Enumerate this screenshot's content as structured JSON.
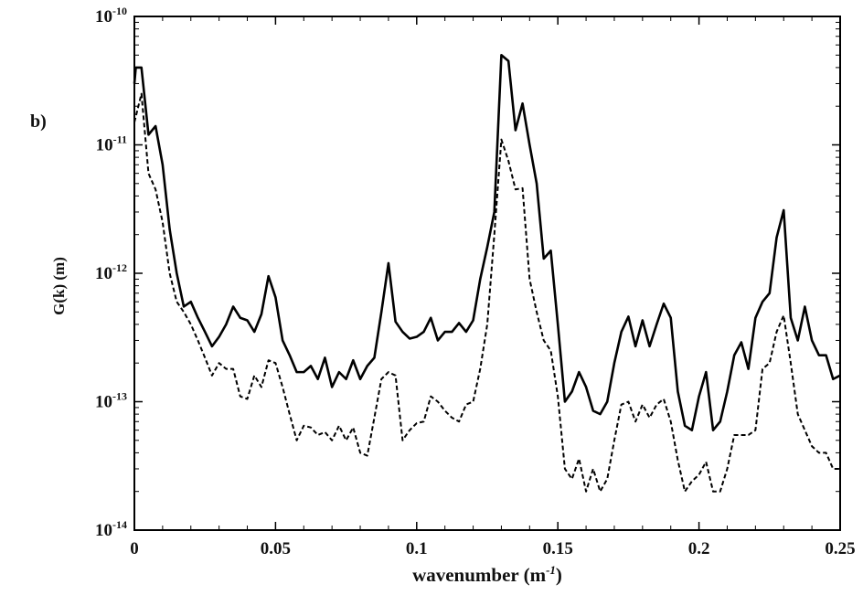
{
  "panel_label": "b)",
  "chart_data": {
    "type": "line",
    "xlabel": "wavenumber",
    "xlabel_unit_base": "m",
    "xlabel_unit_exp": "-1",
    "ylabel": "G(k) (m)",
    "xlim": [
      0,
      0.25
    ],
    "ylim": [
      1e-14,
      1e-10
    ],
    "yscale": "log",
    "grid": false,
    "legend": "none",
    "x_ticks": [
      0,
      0.05,
      0.1,
      0.15,
      0.2,
      0.25
    ],
    "x_tick_labels": [
      "0",
      "0.05",
      "0.1",
      "0.15",
      "0.2",
      "0.25"
    ],
    "y_ticks": [
      1e-14,
      1e-13,
      1e-12,
      1e-11,
      1e-10
    ],
    "y_tick_base": "10",
    "y_tick_exps": [
      "-14",
      "-13",
      "-12",
      "-11",
      "-10"
    ],
    "series": [
      {
        "style": "solid",
        "color": "#000000",
        "points": [
          [
            0.0,
            3e-11
          ],
          [
            0.0005,
            4e-11
          ],
          [
            0.0025,
            4e-11
          ],
          [
            0.005,
            1.2e-11
          ],
          [
            0.0075,
            1.4e-11
          ],
          [
            0.01,
            7e-12
          ],
          [
            0.0125,
            2.2e-12
          ],
          [
            0.015,
            1e-12
          ],
          [
            0.0175,
            5.5e-13
          ],
          [
            0.02,
            6e-13
          ],
          [
            0.0225,
            4.5e-13
          ],
          [
            0.025,
            3.5e-13
          ],
          [
            0.0275,
            2.7e-13
          ],
          [
            0.03,
            3.2e-13
          ],
          [
            0.0325,
            4e-13
          ],
          [
            0.035,
            5.5e-13
          ],
          [
            0.0375,
            4.5e-13
          ],
          [
            0.04,
            4.3e-13
          ],
          [
            0.0425,
            3.5e-13
          ],
          [
            0.045,
            4.8e-13
          ],
          [
            0.0475,
            9.5e-13
          ],
          [
            0.05,
            6.5e-13
          ],
          [
            0.0525,
            3e-13
          ],
          [
            0.055,
            2.3e-13
          ],
          [
            0.0575,
            1.7e-13
          ],
          [
            0.06,
            1.7e-13
          ],
          [
            0.0625,
            1.9e-13
          ],
          [
            0.065,
            1.5e-13
          ],
          [
            0.0675,
            2.2e-13
          ],
          [
            0.07,
            1.3e-13
          ],
          [
            0.0725,
            1.7e-13
          ],
          [
            0.075,
            1.5e-13
          ],
          [
            0.0775,
            2.1e-13
          ],
          [
            0.08,
            1.5e-13
          ],
          [
            0.0825,
            1.9e-13
          ],
          [
            0.085,
            2.2e-13
          ],
          [
            0.0875,
            5e-13
          ],
          [
            0.09,
            1.2e-12
          ],
          [
            0.0925,
            4.2e-13
          ],
          [
            0.095,
            3.5e-13
          ],
          [
            0.0975,
            3.1e-13
          ],
          [
            0.1,
            3.2e-13
          ],
          [
            0.1025,
            3.5e-13
          ],
          [
            0.105,
            4.5e-13
          ],
          [
            0.1075,
            3e-13
          ],
          [
            0.11,
            3.5e-13
          ],
          [
            0.1125,
            3.5e-13
          ],
          [
            0.115,
            4.1e-13
          ],
          [
            0.1175,
            3.5e-13
          ],
          [
            0.12,
            4.3e-13
          ],
          [
            0.1225,
            9e-13
          ],
          [
            0.125,
            1.6e-12
          ],
          [
            0.1275,
            3e-12
          ],
          [
            0.13,
            5e-11
          ],
          [
            0.1325,
            4.5e-11
          ],
          [
            0.135,
            1.3e-11
          ],
          [
            0.1375,
            2.1e-11
          ],
          [
            0.14,
            1e-11
          ],
          [
            0.1425,
            5e-12
          ],
          [
            0.145,
            1.3e-12
          ],
          [
            0.1475,
            1.5e-12
          ],
          [
            0.15,
            4e-13
          ],
          [
            0.1525,
            1e-13
          ],
          [
            0.155,
            1.2e-13
          ],
          [
            0.1575,
            1.7e-13
          ],
          [
            0.16,
            1.3e-13
          ],
          [
            0.1625,
            8.5e-14
          ],
          [
            0.165,
            8e-14
          ],
          [
            0.1675,
            1e-13
          ],
          [
            0.17,
            2e-13
          ],
          [
            0.1725,
            3.5e-13
          ],
          [
            0.175,
            4.6e-13
          ],
          [
            0.1775,
            2.7e-13
          ],
          [
            0.18,
            4.3e-13
          ],
          [
            0.1825,
            2.7e-13
          ],
          [
            0.185,
            4e-13
          ],
          [
            0.1875,
            5.8e-13
          ],
          [
            0.19,
            4.5e-13
          ],
          [
            0.1925,
            1.2e-13
          ],
          [
            0.195,
            6.5e-14
          ],
          [
            0.1975,
            6e-14
          ],
          [
            0.2,
            1.1e-13
          ],
          [
            0.2025,
            1.7e-13
          ],
          [
            0.205,
            6e-14
          ],
          [
            0.2075,
            7e-14
          ],
          [
            0.21,
            1.2e-13
          ],
          [
            0.2125,
            2.3e-13
          ],
          [
            0.215,
            2.9e-13
          ],
          [
            0.2175,
            1.8e-13
          ],
          [
            0.22,
            4.5e-13
          ],
          [
            0.2225,
            6e-13
          ],
          [
            0.225,
            7e-13
          ],
          [
            0.2275,
            1.9e-12
          ],
          [
            0.23,
            3.1e-12
          ],
          [
            0.2325,
            4.5e-13
          ],
          [
            0.235,
            3e-13
          ],
          [
            0.2375,
            5.5e-13
          ],
          [
            0.24,
            3e-13
          ],
          [
            0.2425,
            2.3e-13
          ],
          [
            0.245,
            2.3e-13
          ],
          [
            0.2475,
            1.5e-13
          ],
          [
            0.25,
            1.6e-13
          ]
        ]
      },
      {
        "style": "dashed",
        "color": "#000000",
        "points": [
          [
            0.0,
            1.5e-11
          ],
          [
            0.0025,
            2.5e-11
          ],
          [
            0.005,
            6e-12
          ],
          [
            0.0075,
            4.5e-12
          ],
          [
            0.01,
            2.5e-12
          ],
          [
            0.0125,
            1e-12
          ],
          [
            0.015,
            6e-13
          ],
          [
            0.0175,
            5e-13
          ],
          [
            0.02,
            4e-13
          ],
          [
            0.0225,
            3e-13
          ],
          [
            0.025,
            2.2e-13
          ],
          [
            0.0275,
            1.6e-13
          ],
          [
            0.03,
            2e-13
          ],
          [
            0.0325,
            1.8e-13
          ],
          [
            0.035,
            1.8e-13
          ],
          [
            0.0375,
            1.1e-13
          ],
          [
            0.04,
            1.05e-13
          ],
          [
            0.0425,
            1.6e-13
          ],
          [
            0.045,
            1.3e-13
          ],
          [
            0.0475,
            2.1e-13
          ],
          [
            0.05,
            2e-13
          ],
          [
            0.0525,
            1.3e-13
          ],
          [
            0.055,
            8e-14
          ],
          [
            0.0575,
            5e-14
          ],
          [
            0.06,
            6.5e-14
          ],
          [
            0.0625,
            6.3e-14
          ],
          [
            0.065,
            5.5e-14
          ],
          [
            0.0675,
            5.8e-14
          ],
          [
            0.07,
            5e-14
          ],
          [
            0.0725,
            6.5e-14
          ],
          [
            0.075,
            5e-14
          ],
          [
            0.0775,
            6.3e-14
          ],
          [
            0.08,
            4e-14
          ],
          [
            0.0825,
            3.8e-14
          ],
          [
            0.085,
            7.5e-14
          ],
          [
            0.0875,
            1.5e-13
          ],
          [
            0.09,
            1.7e-13
          ],
          [
            0.0925,
            1.6e-13
          ],
          [
            0.095,
            5e-14
          ],
          [
            0.0975,
            6e-14
          ],
          [
            0.1,
            6.8e-14
          ],
          [
            0.1025,
            7e-14
          ],
          [
            0.105,
            1.1e-13
          ],
          [
            0.1075,
            1e-13
          ],
          [
            0.11,
            8.5e-14
          ],
          [
            0.1125,
            7.5e-14
          ],
          [
            0.115,
            7e-14
          ],
          [
            0.1175,
            9.5e-14
          ],
          [
            0.12,
            1e-13
          ],
          [
            0.1225,
            1.8e-13
          ],
          [
            0.125,
            4e-13
          ],
          [
            0.1275,
            2e-12
          ],
          [
            0.13,
            1.1e-11
          ],
          [
            0.1325,
            7.5e-12
          ],
          [
            0.135,
            4.5e-12
          ],
          [
            0.1375,
            4.6e-12
          ],
          [
            0.14,
            9e-13
          ],
          [
            0.1425,
            5e-13
          ],
          [
            0.145,
            3e-13
          ],
          [
            0.1475,
            2.5e-13
          ],
          [
            0.15,
            1.1e-13
          ],
          [
            0.1525,
            3e-14
          ],
          [
            0.155,
            2.5e-14
          ],
          [
            0.1575,
            3.6e-14
          ],
          [
            0.16,
            2e-14
          ],
          [
            0.1625,
            3e-14
          ],
          [
            0.165,
            2e-14
          ],
          [
            0.1675,
            2.5e-14
          ],
          [
            0.17,
            5e-14
          ],
          [
            0.1725,
            9.5e-14
          ],
          [
            0.175,
            1e-13
          ],
          [
            0.1775,
            7e-14
          ],
          [
            0.18,
            9.5e-14
          ],
          [
            0.1825,
            7.5e-14
          ],
          [
            0.185,
            9.5e-14
          ],
          [
            0.1875,
            1.05e-13
          ],
          [
            0.19,
            7e-14
          ],
          [
            0.1925,
            3.5e-14
          ],
          [
            0.195,
            2e-14
          ],
          [
            0.1975,
            2.4e-14
          ],
          [
            0.2,
            2.7e-14
          ],
          [
            0.2025,
            3.4e-14
          ],
          [
            0.205,
            2e-14
          ],
          [
            0.2075,
            2e-14
          ],
          [
            0.21,
            3e-14
          ],
          [
            0.2125,
            5.5e-14
          ],
          [
            0.215,
            5.5e-14
          ],
          [
            0.2175,
            5.5e-14
          ],
          [
            0.22,
            6e-14
          ],
          [
            0.2225,
            1.8e-13
          ],
          [
            0.225,
            2e-13
          ],
          [
            0.2275,
            3.5e-13
          ],
          [
            0.23,
            4.7e-13
          ],
          [
            0.2325,
            2e-13
          ],
          [
            0.235,
            8e-14
          ],
          [
            0.2375,
            6e-14
          ],
          [
            0.24,
            4.5e-14
          ],
          [
            0.2425,
            4e-14
          ],
          [
            0.245,
            4e-14
          ],
          [
            0.2475,
            3e-14
          ],
          [
            0.25,
            3e-14
          ]
        ]
      }
    ]
  }
}
